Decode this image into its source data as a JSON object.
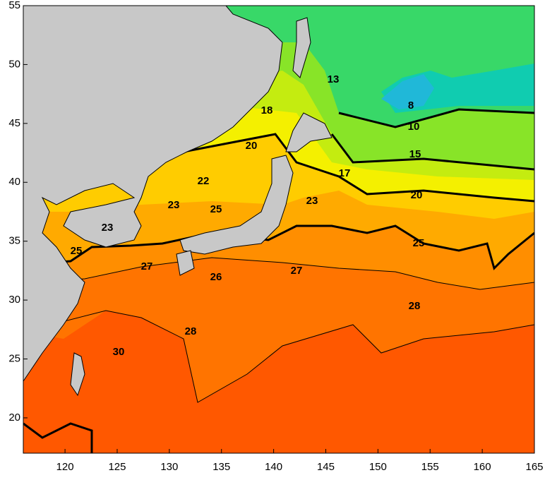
{
  "map": {
    "xlim": [
      116,
      165
    ],
    "ylim": [
      17,
      55
    ],
    "xticks": [
      120,
      125,
      130,
      135,
      140,
      145,
      150,
      155,
      160,
      165
    ],
    "yticks": [
      20,
      25,
      30,
      35,
      40,
      45,
      50,
      55
    ],
    "contour_labels": [
      13,
      18,
      8,
      10,
      20,
      15,
      17,
      22,
      20,
      23,
      23,
      25,
      23,
      25,
      25,
      27,
      27,
      26,
      28,
      28,
      30
    ]
  }
}
